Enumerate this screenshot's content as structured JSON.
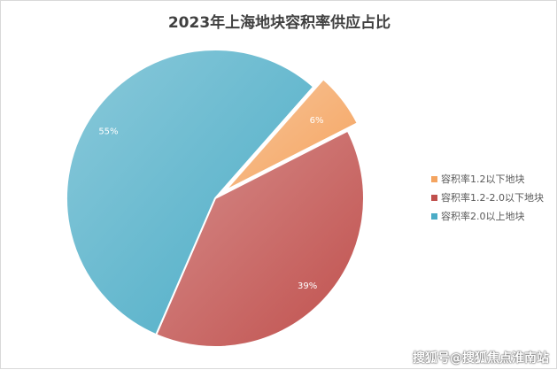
{
  "chart_data": {
    "type": "pie",
    "title": "2023年上海地块容积率供应占比",
    "slices": [
      {
        "label": "容积率1.2以下地块",
        "value": 6,
        "display": "6%",
        "color": "#f4a460",
        "exploded": true
      },
      {
        "label": "容积率1.2-2.0以下地块",
        "value": 39,
        "display": "39%",
        "color": "#c0504d",
        "exploded": false
      },
      {
        "label": "容积率2.0以上地块",
        "value": 55,
        "display": "55%",
        "color": "#4bacc6",
        "exploded": false
      }
    ],
    "legend_position": "right"
  },
  "watermark": "搜狐号@搜狐焦点淮南站"
}
